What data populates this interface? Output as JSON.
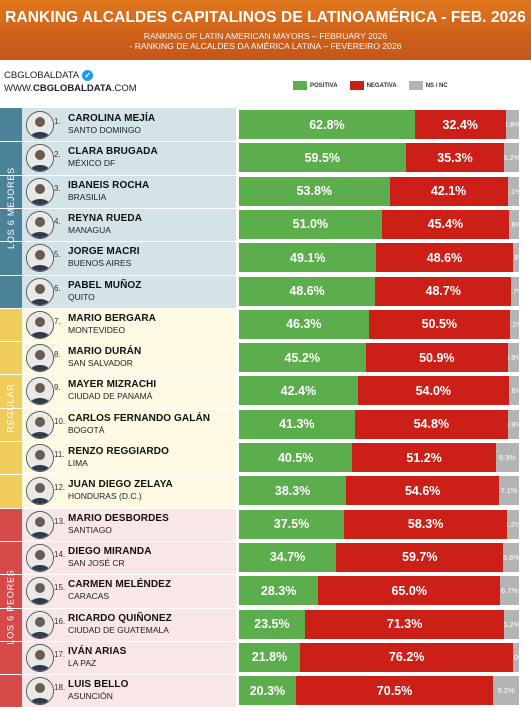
{
  "header": {
    "title": "RANKING ALCALDES CAPITALINOS DE LATINOAMÉRICA - FEB. 2026",
    "sub1": "RANKING OF LATIN AMERICAN MAYORS – FEBRUARY 2026",
    "sub2": "- RANKING DE ALCALDES DA AMÉRICA LATINA – FEVEREIRO 2026"
  },
  "brand": {
    "handle": "CBGLOBALDATA",
    "site_prefix": "WWW.",
    "site_bold": "CBGLOBALDATA",
    "site_suffix": ".COM",
    "verified_glyph": "✓"
  },
  "legend": {
    "positive": "POSITIVA",
    "negative": "NEGATIVA",
    "nsnc": "NS / NC"
  },
  "colors": {
    "positive": "#5cad4c",
    "negative": "#cc1f17",
    "nsnc": "#b4b4b4",
    "top_band": "#4b8297",
    "top_bg": "#d4e3e8",
    "mid_band": "#f0cd5a",
    "mid_bg": "#fdf9e3",
    "low_band": "#d64a4a",
    "low_bg": "#f9e6e6"
  },
  "groups": [
    {
      "label": "LOS 6 MEJORES",
      "first": 0,
      "last": 5,
      "band": "top"
    },
    {
      "label": "REGULAR",
      "first": 6,
      "last": 11,
      "band": "mid"
    },
    {
      "label": "LOS 6 PEORES",
      "first": 12,
      "last": 17,
      "band": "low"
    }
  ],
  "rows": [
    {
      "rank": "1.",
      "name": "CAROLINA MEJÍA",
      "city": "SANTO DOMINGO"
    },
    {
      "rank": "2.",
      "name": "CLARA BRUGADA",
      "city": "MÉXICO DF"
    },
    {
      "rank": "3.",
      "name": "IBANEIS ROCHA",
      "city": "BRASILIA"
    },
    {
      "rank": "4.",
      "name": "REYNA RUEDA",
      "city": "MANAGUA"
    },
    {
      "rank": "5.",
      "name": "JORGE MACRI",
      "city": "BUENOS AIRES"
    },
    {
      "rank": "6.",
      "name": "PABEL MUÑOZ",
      "city": "QUITO"
    },
    {
      "rank": "7.",
      "name": "MARIO BERGARA",
      "city": "MONTEVIDEO"
    },
    {
      "rank": "8.",
      "name": "MARIO DURÁN",
      "city": "SAN SALVADOR"
    },
    {
      "rank": "9.",
      "name": "MAYER MIZRACHI",
      "city": "CIUDAD DE PANAMÁ"
    },
    {
      "rank": "10.",
      "name": "CARLOS FERNANDO GALÁN",
      "city": "BOGOTÁ"
    },
    {
      "rank": "11.",
      "name": "RENZO REGGIARDO",
      "city": "LIMA"
    },
    {
      "rank": "12.",
      "name": "JUAN DIEGO ZELAYA",
      "city": "HONDURAS (D.C.)"
    },
    {
      "rank": "13.",
      "name": "MARIO DESBORDES",
      "city": "SANTIAGO"
    },
    {
      "rank": "14.",
      "name": "DIEGO MIRANDA",
      "city": "SAN JOSÉ CR"
    },
    {
      "rank": "15.",
      "name": "CARMEN MELÉNDEZ",
      "city": "CARACAS"
    },
    {
      "rank": "16.",
      "name": "RICARDO QUIÑONEZ",
      "city": "CIUDAD DE GUATEMALA"
    },
    {
      "rank": "17.",
      "name": "IVÁN ARIAS",
      "city": "LA PAZ"
    },
    {
      "rank": "18.",
      "name": "LUIS BELLO",
      "city": "ASUNCIÓN"
    }
  ],
  "chart_data": {
    "type": "bar",
    "orientation": "horizontal",
    "stacked": true,
    "categories": [
      "CAROLINA MEJÍA",
      "CLARA BRUGADA",
      "IBANEIS ROCHA",
      "REYNA RUEDA",
      "JORGE MACRI",
      "PABEL MUÑOZ",
      "MARIO BERGARA",
      "MARIO DURÁN",
      "MAYER MIZRACHI",
      "CARLOS FERNANDO GALÁN",
      "RENZO REGGIARDO",
      "JUAN DIEGO ZELAYA",
      "MARIO DESBORDES",
      "DIEGO MIRANDA",
      "CARMEN MELÉNDEZ",
      "RICARDO QUIÑONEZ",
      "IVÁN ARIAS",
      "LUIS BELLO"
    ],
    "series": [
      {
        "name": "POSITIVA",
        "values": [
          62.8,
          59.5,
          53.8,
          51.0,
          49.1,
          48.6,
          46.3,
          45.2,
          42.4,
          41.3,
          40.5,
          38.3,
          37.5,
          34.7,
          28.3,
          23.5,
          21.8,
          20.3
        ]
      },
      {
        "name": "NEGATIVA",
        "values": [
          32.4,
          35.3,
          42.1,
          45.4,
          48.6,
          48.7,
          50.5,
          50.9,
          54.0,
          54.8,
          51.2,
          54.6,
          58.3,
          59.7,
          65.0,
          71.3,
          76.2,
          70.5
        ]
      },
      {
        "name": "NS / NC",
        "values": [
          4.8,
          5.2,
          4.1,
          3.6,
          2.3,
          2.7,
          3.2,
          3.9,
          3.6,
          3.9,
          8.3,
          7.1,
          4.2,
          5.6,
          6.7,
          5.2,
          2.0,
          9.2
        ]
      }
    ],
    "xlim": [
      0,
      100
    ],
    "legend_position": "top-right",
    "grid": false
  }
}
